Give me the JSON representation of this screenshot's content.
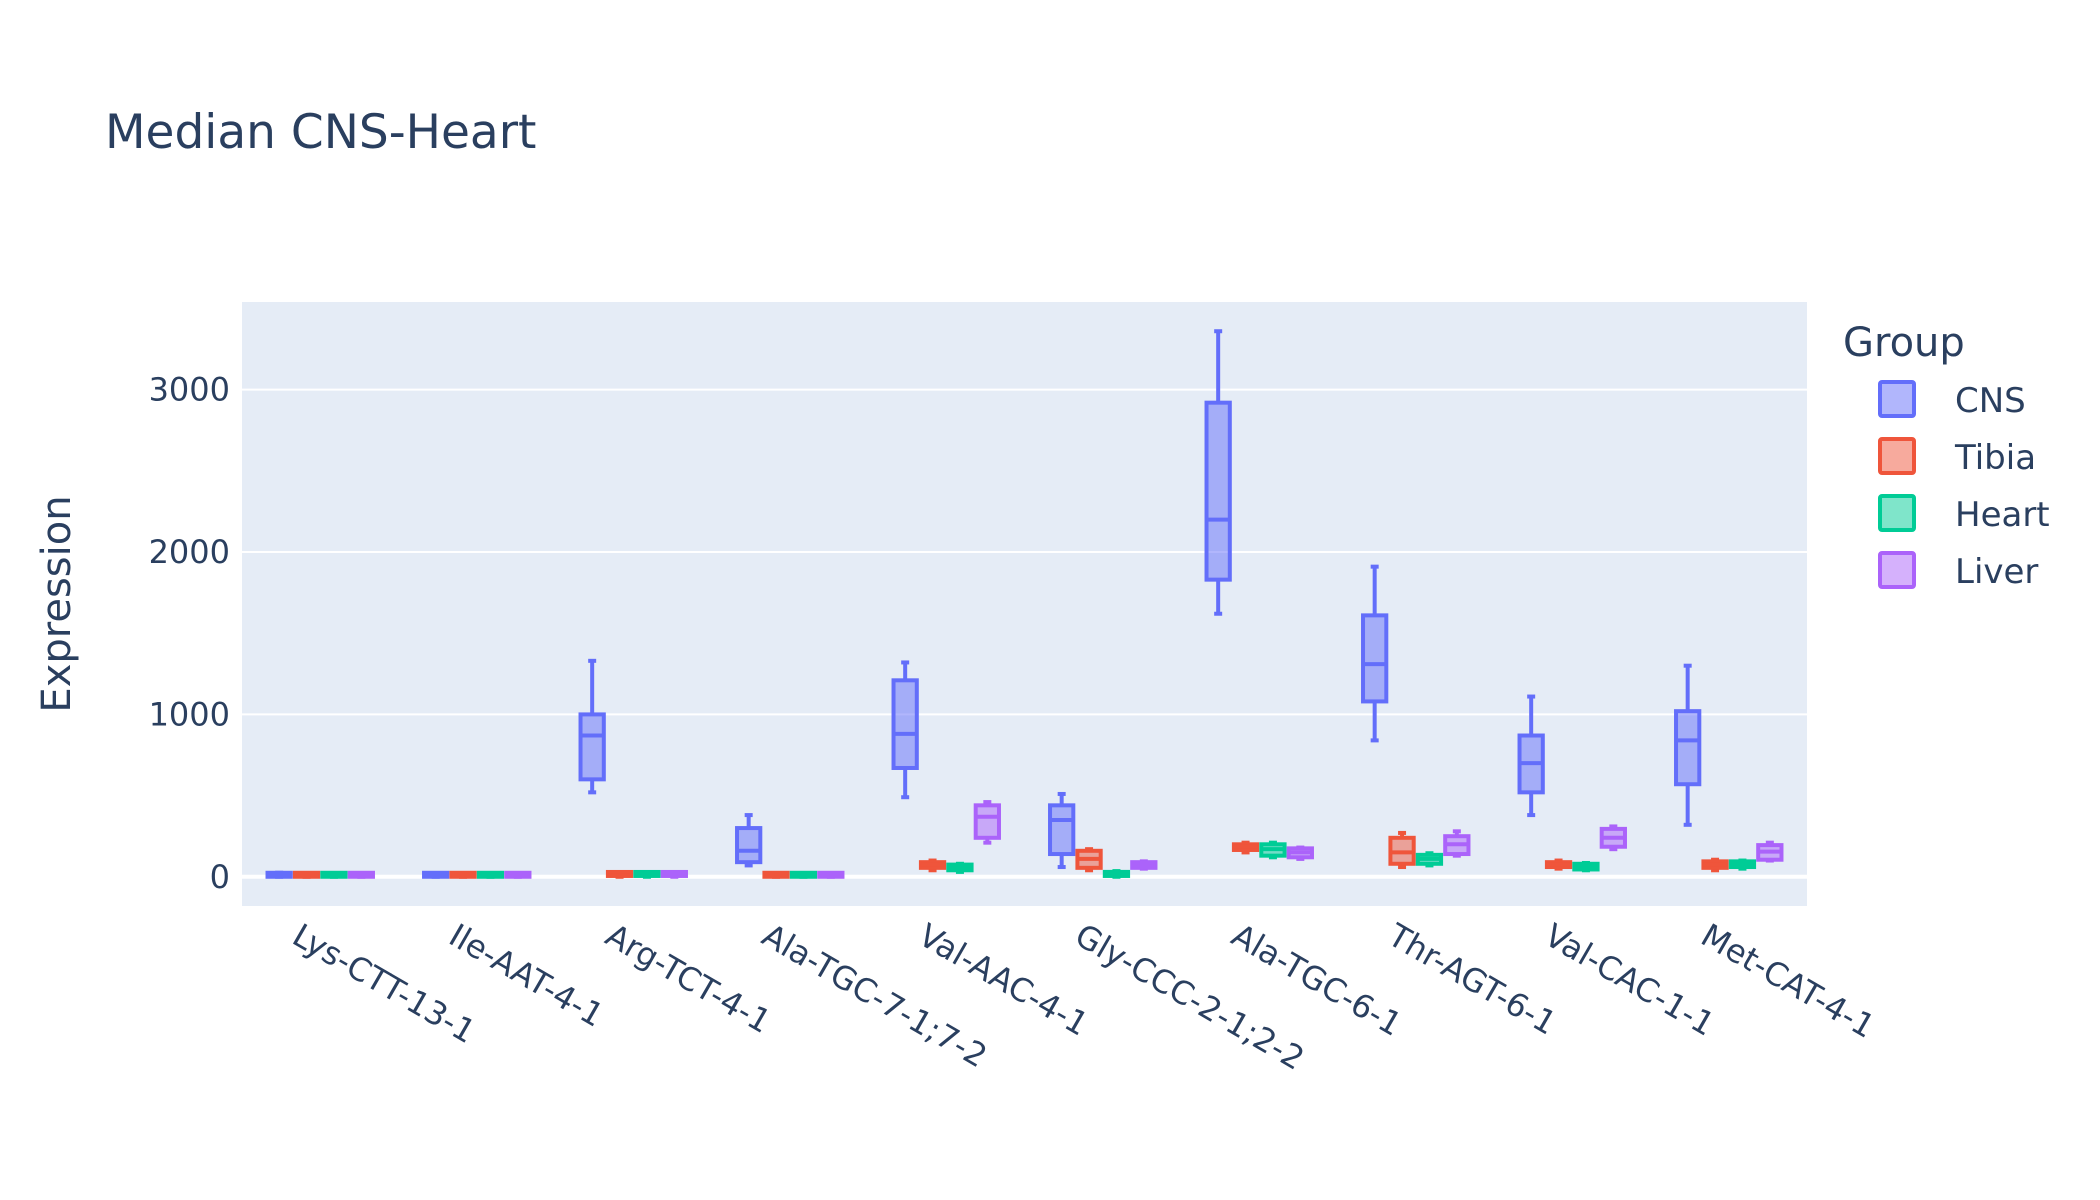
{
  "chart_data": {
    "type": "box",
    "title": "Median CNS-Heart",
    "xlabel": "",
    "ylabel": "Expression",
    "ylim": [
      -180,
      3540
    ],
    "yticks": [
      0,
      1000,
      2000,
      3000
    ],
    "grid": true,
    "legend_title": "Group",
    "legend_position": "top-right",
    "categories": [
      "Lys-CTT-13-1",
      "Ile-AAT-4-1",
      "Arg-TCT-4-1",
      "Ala-TGC-7-1;7-2",
      "Val-AAC-4-1",
      "Gly-CCC-2-1;2-2",
      "Ala-TGC-6-1",
      "Thr-AGT-6-1",
      "Val-CAC-1-1",
      "Met-CAT-4-1"
    ],
    "series": [
      {
        "name": "CNS",
        "color": "#636efa",
        "boxes": [
          {
            "min": 0,
            "q1": 0,
            "median": 5,
            "q3": 15,
            "max": 25
          },
          {
            "min": 0,
            "q1": 0,
            "median": 5,
            "q3": 10,
            "max": 15
          },
          {
            "min": 520,
            "q1": 600,
            "median": 870,
            "q3": 1000,
            "max": 1330
          },
          {
            "min": 70,
            "q1": 90,
            "median": 160,
            "q3": 300,
            "max": 380
          },
          {
            "min": 490,
            "q1": 670,
            "median": 880,
            "q3": 1210,
            "max": 1320
          },
          {
            "min": 60,
            "q1": 140,
            "median": 350,
            "q3": 440,
            "max": 510
          },
          {
            "min": 1620,
            "q1": 1830,
            "median": 2200,
            "q3": 2920,
            "max": 3360
          },
          {
            "min": 840,
            "q1": 1080,
            "median": 1310,
            "q3": 1610,
            "max": 1910
          },
          {
            "min": 380,
            "q1": 520,
            "median": 700,
            "q3": 870,
            "max": 1110
          },
          {
            "min": 320,
            "q1": 570,
            "median": 840,
            "q3": 1020,
            "max": 1300
          }
        ]
      },
      {
        "name": "Tibia",
        "color": "#ef553b",
        "boxes": [
          {
            "min": 0,
            "q1": 0,
            "median": 5,
            "q3": 15,
            "max": 20
          },
          {
            "min": 0,
            "q1": 0,
            "median": 5,
            "q3": 10,
            "max": 15
          },
          {
            "min": 0,
            "q1": 5,
            "median": 10,
            "q3": 20,
            "max": 25
          },
          {
            "min": 0,
            "q1": 0,
            "median": 5,
            "q3": 15,
            "max": 20
          },
          {
            "min": 40,
            "q1": 55,
            "median": 75,
            "q3": 90,
            "max": 100
          },
          {
            "min": 40,
            "q1": 55,
            "median": 110,
            "q3": 160,
            "max": 170
          },
          {
            "min": 150,
            "q1": 165,
            "median": 185,
            "q3": 200,
            "max": 210
          },
          {
            "min": 60,
            "q1": 80,
            "median": 150,
            "q3": 240,
            "max": 270
          },
          {
            "min": 50,
            "q1": 60,
            "median": 75,
            "q3": 90,
            "max": 100
          },
          {
            "min": 40,
            "q1": 55,
            "median": 75,
            "q3": 95,
            "max": 105
          }
        ]
      },
      {
        "name": "Heart",
        "color": "#00cc96",
        "boxes": [
          {
            "min": 0,
            "q1": 0,
            "median": 5,
            "q3": 15,
            "max": 20
          },
          {
            "min": 0,
            "q1": 0,
            "median": 5,
            "q3": 10,
            "max": 15
          },
          {
            "min": 0,
            "q1": 5,
            "median": 10,
            "q3": 20,
            "max": 25
          },
          {
            "min": 0,
            "q1": 0,
            "median": 5,
            "q3": 15,
            "max": 20
          },
          {
            "min": 30,
            "q1": 40,
            "median": 60,
            "q3": 75,
            "max": 80
          },
          {
            "min": 0,
            "q1": 5,
            "median": 15,
            "q3": 30,
            "max": 35
          },
          {
            "min": 120,
            "q1": 130,
            "median": 170,
            "q3": 200,
            "max": 210
          },
          {
            "min": 70,
            "q1": 80,
            "median": 110,
            "q3": 135,
            "max": 145
          },
          {
            "min": 40,
            "q1": 45,
            "median": 65,
            "q3": 80,
            "max": 85
          },
          {
            "min": 50,
            "q1": 60,
            "median": 80,
            "q3": 95,
            "max": 100
          }
        ]
      },
      {
        "name": "Liver",
        "color": "#ab63fa",
        "boxes": [
          {
            "min": 0,
            "q1": 0,
            "median": 5,
            "q3": 15,
            "max": 20
          },
          {
            "min": 0,
            "q1": 0,
            "median": 5,
            "q3": 10,
            "max": 15
          },
          {
            "min": 0,
            "q1": 5,
            "median": 10,
            "q3": 20,
            "max": 25
          },
          {
            "min": 0,
            "q1": 0,
            "median": 5,
            "q3": 15,
            "max": 20
          },
          {
            "min": 210,
            "q1": 240,
            "median": 370,
            "q3": 440,
            "max": 460
          },
          {
            "min": 50,
            "q1": 55,
            "median": 75,
            "q3": 90,
            "max": 95
          },
          {
            "min": 110,
            "q1": 120,
            "median": 150,
            "q3": 175,
            "max": 180
          },
          {
            "min": 130,
            "q1": 140,
            "median": 200,
            "q3": 250,
            "max": 280
          },
          {
            "min": 170,
            "q1": 185,
            "median": 240,
            "q3": 295,
            "max": 310
          },
          {
            "min": 100,
            "q1": 105,
            "median": 155,
            "q3": 195,
            "max": 210
          }
        ]
      }
    ]
  }
}
